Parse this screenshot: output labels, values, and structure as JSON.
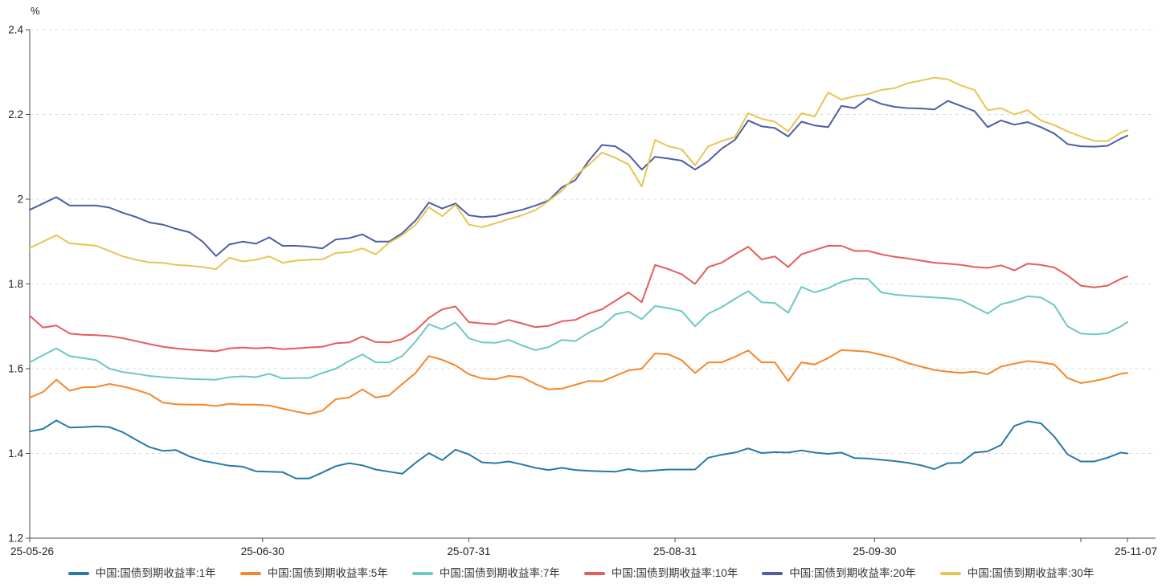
{
  "chart_data": {
    "type": "line",
    "title": "",
    "unit": "%",
    "xlabel": "",
    "ylabel": "%",
    "ylim": [
      1.2,
      2.4
    ],
    "x_range_days": [
      0,
      165
    ],
    "start_date": "25-05-26",
    "end_date": "25-11-07",
    "grid": "horizontal-dashed",
    "legend_position": "bottom-center",
    "y_ticks": [
      {
        "value": 1.2,
        "label": "1.2"
      },
      {
        "value": 1.4,
        "label": "1.4"
      },
      {
        "value": 1.6,
        "label": "1.6"
      },
      {
        "value": 1.8,
        "label": "1.8"
      },
      {
        "value": 2.0,
        "label": "2"
      },
      {
        "value": 2.2,
        "label": "2.2"
      },
      {
        "value": 2.4,
        "label": "2.4"
      }
    ],
    "x_ticks": [
      {
        "day": 0,
        "label": "25-05-26"
      },
      {
        "day": 35,
        "label": "25-06-30"
      },
      {
        "day": 66,
        "label": "25-07-31"
      },
      {
        "day": 97,
        "label": "25-08-31"
      },
      {
        "day": 127,
        "label": "25-09-30"
      },
      {
        "day": 158,
        "label": ""
      },
      {
        "day": 165,
        "label": "25-11-07"
      }
    ],
    "x_days": [
      0,
      2,
      4,
      6,
      8,
      10,
      12,
      14,
      16,
      18,
      20,
      22,
      24,
      26,
      28,
      30,
      32,
      34,
      36,
      38,
      40,
      42,
      44,
      46,
      48,
      50,
      52,
      54,
      56,
      58,
      60,
      62,
      64,
      66,
      68,
      70,
      72,
      74,
      76,
      78,
      80,
      82,
      84,
      86,
      88,
      90,
      92,
      94,
      96,
      98,
      100,
      102,
      104,
      106,
      108,
      110,
      112,
      114,
      116,
      118,
      120,
      122,
      124,
      126,
      128,
      130,
      132,
      134,
      136,
      138,
      140,
      142,
      144,
      146,
      148,
      150,
      152,
      154,
      156,
      158,
      160,
      162,
      164,
      165
    ],
    "series": [
      {
        "name": "中国:国债到期收益率:1年",
        "color": "#2879a9",
        "values": [
          1.452,
          1.458,
          1.478,
          1.461,
          1.462,
          1.464,
          1.462,
          1.45,
          1.432,
          1.415,
          1.406,
          1.408,
          1.393,
          1.383,
          1.377,
          1.371,
          1.369,
          1.358,
          1.357,
          1.356,
          1.341,
          1.341,
          1.355,
          1.37,
          1.377,
          1.372,
          1.362,
          1.357,
          1.352,
          1.378,
          1.401,
          1.384,
          1.409,
          1.398,
          1.379,
          1.377,
          1.381,
          1.374,
          1.366,
          1.361,
          1.366,
          1.361,
          1.359,
          1.358,
          1.357,
          1.363,
          1.358,
          1.36,
          1.362,
          1.362,
          1.362,
          1.39,
          1.397,
          1.402,
          1.412,
          1.401,
          1.403,
          1.402,
          1.407,
          1.402,
          1.399,
          1.402,
          1.389,
          1.388,
          1.385,
          1.382,
          1.378,
          1.372,
          1.363,
          1.377,
          1.378,
          1.402,
          1.405,
          1.42,
          1.465,
          1.476,
          1.471,
          1.44,
          1.398,
          1.381,
          1.381,
          1.39,
          1.402,
          1.4
        ]
      },
      {
        "name": "中国:国债到期收益率:5年",
        "color": "#f5862b",
        "values": [
          1.532,
          1.545,
          1.574,
          1.548,
          1.556,
          1.557,
          1.564,
          1.558,
          1.55,
          1.54,
          1.52,
          1.516,
          1.515,
          1.515,
          1.512,
          1.517,
          1.515,
          1.515,
          1.513,
          1.506,
          1.499,
          1.493,
          1.501,
          1.528,
          1.532,
          1.551,
          1.532,
          1.537,
          1.564,
          1.59,
          1.63,
          1.621,
          1.608,
          1.587,
          1.577,
          1.575,
          1.583,
          1.58,
          1.564,
          1.551,
          1.553,
          1.562,
          1.571,
          1.57,
          1.583,
          1.596,
          1.6,
          1.636,
          1.634,
          1.62,
          1.59,
          1.615,
          1.615,
          1.628,
          1.643,
          1.615,
          1.615,
          1.571,
          1.615,
          1.61,
          1.625,
          1.644,
          1.642,
          1.64,
          1.633,
          1.625,
          1.613,
          1.605,
          1.597,
          1.593,
          1.59,
          1.593,
          1.587,
          1.605,
          1.612,
          1.618,
          1.615,
          1.61,
          1.578,
          1.566,
          1.571,
          1.578,
          1.588,
          1.59
        ]
      },
      {
        "name": "中国:国债到期收益率:7年",
        "color": "#6cc8c3",
        "values": [
          1.615,
          1.632,
          1.648,
          1.63,
          1.625,
          1.62,
          1.6,
          1.592,
          1.588,
          1.583,
          1.58,
          1.578,
          1.576,
          1.575,
          1.574,
          1.58,
          1.582,
          1.58,
          1.588,
          1.577,
          1.578,
          1.578,
          1.59,
          1.6,
          1.618,
          1.634,
          1.615,
          1.615,
          1.63,
          1.664,
          1.705,
          1.693,
          1.709,
          1.672,
          1.662,
          1.661,
          1.668,
          1.655,
          1.644,
          1.651,
          1.668,
          1.665,
          1.685,
          1.7,
          1.728,
          1.735,
          1.717,
          1.748,
          1.743,
          1.736,
          1.7,
          1.73,
          1.745,
          1.765,
          1.783,
          1.757,
          1.755,
          1.732,
          1.793,
          1.78,
          1.79,
          1.805,
          1.813,
          1.812,
          1.78,
          1.775,
          1.772,
          1.77,
          1.768,
          1.766,
          1.762,
          1.746,
          1.73,
          1.752,
          1.76,
          1.771,
          1.768,
          1.75,
          1.7,
          1.683,
          1.681,
          1.684,
          1.7,
          1.71
        ]
      },
      {
        "name": "中国:国债到期收益率:10年",
        "color": "#e45d5b",
        "values": [
          1.725,
          1.697,
          1.702,
          1.683,
          1.68,
          1.679,
          1.677,
          1.672,
          1.665,
          1.658,
          1.652,
          1.648,
          1.645,
          1.643,
          1.641,
          1.648,
          1.65,
          1.648,
          1.65,
          1.646,
          1.648,
          1.65,
          1.652,
          1.66,
          1.662,
          1.676,
          1.663,
          1.662,
          1.67,
          1.69,
          1.72,
          1.74,
          1.747,
          1.71,
          1.707,
          1.705,
          1.715,
          1.707,
          1.698,
          1.701,
          1.712,
          1.715,
          1.73,
          1.74,
          1.76,
          1.78,
          1.757,
          1.845,
          1.835,
          1.823,
          1.8,
          1.84,
          1.85,
          1.87,
          1.888,
          1.858,
          1.865,
          1.84,
          1.87,
          1.88,
          1.89,
          1.89,
          1.878,
          1.878,
          1.87,
          1.864,
          1.86,
          1.855,
          1.85,
          1.848,
          1.845,
          1.84,
          1.838,
          1.844,
          1.832,
          1.848,
          1.845,
          1.839,
          1.82,
          1.796,
          1.792,
          1.796,
          1.812,
          1.818
        ]
      },
      {
        "name": "中国:国债到期收益率:20年",
        "color": "#4e5da6",
        "values": [
          1.975,
          1.99,
          2.005,
          1.985,
          1.985,
          1.985,
          1.98,
          1.968,
          1.958,
          1.945,
          1.94,
          1.93,
          1.922,
          1.9,
          1.866,
          1.893,
          1.9,
          1.895,
          1.91,
          1.89,
          1.89,
          1.888,
          1.884,
          1.905,
          1.908,
          1.917,
          1.9,
          1.9,
          1.92,
          1.95,
          1.992,
          1.978,
          1.99,
          1.962,
          1.958,
          1.96,
          1.968,
          1.975,
          1.985,
          1.997,
          2.028,
          2.045,
          2.09,
          2.128,
          2.125,
          2.105,
          2.07,
          2.1,
          2.096,
          2.091,
          2.07,
          2.09,
          2.119,
          2.14,
          2.186,
          2.172,
          2.168,
          2.148,
          2.183,
          2.174,
          2.17,
          2.22,
          2.215,
          2.238,
          2.225,
          2.218,
          2.215,
          2.214,
          2.212,
          2.232,
          2.22,
          2.208,
          2.17,
          2.186,
          2.176,
          2.182,
          2.17,
          2.155,
          2.13,
          2.125,
          2.124,
          2.126,
          2.143,
          2.15
        ]
      },
      {
        "name": "中国:国债到期收益率:30年",
        "color": "#e7c554",
        "values": [
          1.885,
          1.9,
          1.915,
          1.896,
          1.893,
          1.89,
          1.878,
          1.865,
          1.857,
          1.851,
          1.85,
          1.845,
          1.843,
          1.84,
          1.835,
          1.862,
          1.853,
          1.857,
          1.865,
          1.85,
          1.855,
          1.857,
          1.858,
          1.873,
          1.875,
          1.884,
          1.87,
          1.897,
          1.915,
          1.94,
          1.981,
          1.96,
          1.987,
          1.94,
          1.934,
          1.943,
          1.953,
          1.962,
          1.974,
          1.996,
          2.02,
          2.055,
          2.081,
          2.11,
          2.098,
          2.082,
          2.03,
          2.14,
          2.125,
          2.118,
          2.08,
          2.125,
          2.137,
          2.147,
          2.203,
          2.19,
          2.183,
          2.16,
          2.203,
          2.195,
          2.252,
          2.235,
          2.243,
          2.248,
          2.258,
          2.262,
          2.274,
          2.28,
          2.287,
          2.283,
          2.268,
          2.258,
          2.21,
          2.215,
          2.2,
          2.21,
          2.186,
          2.175,
          2.16,
          2.148,
          2.138,
          2.137,
          2.157,
          2.163
        ]
      }
    ],
    "colors": {
      "axis": "#4a4a4a",
      "grid": "#dedede",
      "tick_text": "#222222",
      "legend_text": "#333333",
      "background": "#ffffff"
    }
  }
}
